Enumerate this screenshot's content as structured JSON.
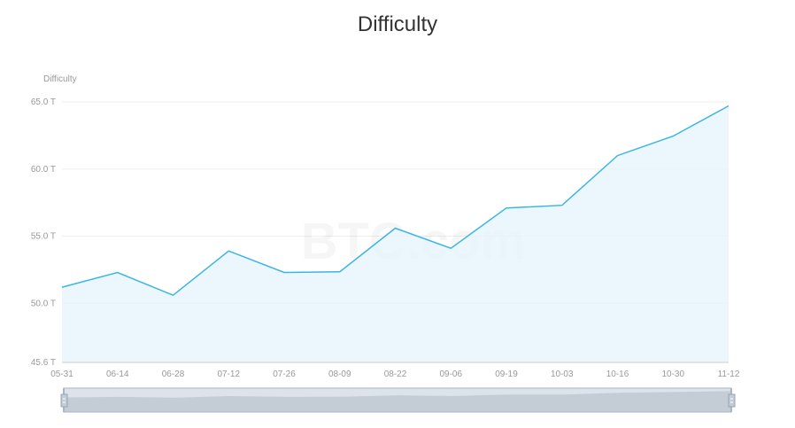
{
  "chart_data": {
    "type": "area",
    "title": "Difficulty",
    "ylabel": "Difficulty",
    "watermark": "BTC.com",
    "categories": [
      "05-31",
      "06-14",
      "06-28",
      "07-12",
      "07-26",
      "08-09",
      "08-22",
      "09-06",
      "09-19",
      "10-03",
      "10-16",
      "10-30",
      "11-12"
    ],
    "values": [
      51.2,
      52.3,
      50.6,
      53.9,
      52.3,
      52.35,
      55.6,
      54.1,
      57.1,
      57.3,
      61.0,
      62.45,
      64.7
    ],
    "ylim": [
      45.6,
      65.0
    ],
    "yticks": [
      {
        "value": 45.6,
        "label": "45.6 T"
      },
      {
        "value": 50.0,
        "label": "50.0 T"
      },
      {
        "value": 55.0,
        "label": "55.0 T"
      },
      {
        "value": 60.0,
        "label": "60.0 T"
      },
      {
        "value": 65.0,
        "label": "65.0 T"
      }
    ],
    "grid": true,
    "colors": {
      "line": "#3cb4e5",
      "area": "#e6f5fb",
      "grid": "#eeeeee",
      "axis_text": "#999999",
      "title": "#333333",
      "zoom_background": "#dde3ea",
      "zoom_area": "#c4ccd6",
      "zoom_border": "#aab4c2"
    }
  }
}
